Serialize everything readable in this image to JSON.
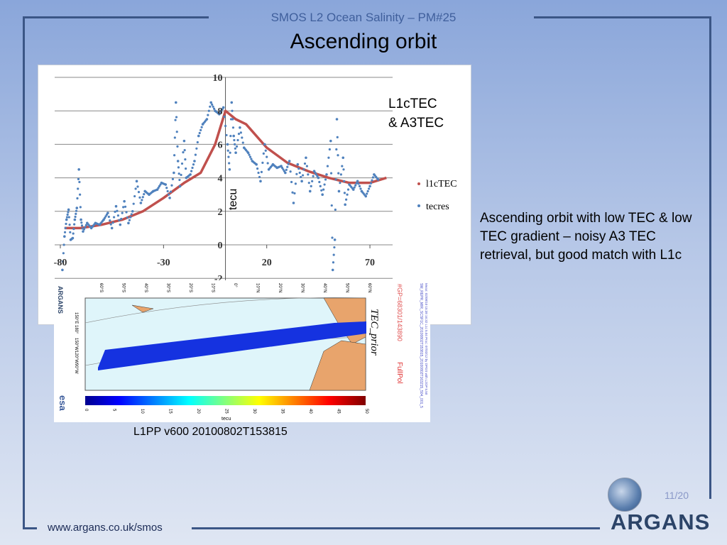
{
  "header": {
    "subtitle": "SMOS L2 Ocean Salinity – PM#25",
    "title": "Ascending orbit"
  },
  "annotation": {
    "line1": "L1cTEC",
    "line2": "& A3TEC"
  },
  "description": "Ascending orbit with low TEC & low TEC gradient – noisy A3 TEC retrieval, but good match with L1c",
  "map": {
    "caption": "L1PP v600 20100802T153815",
    "title": "TEC_prior",
    "gp_count": "#GP=68301/143890",
    "mode": "FullPol",
    "colorbar_label": "tecu",
    "colorbar_ticks": [
      "0",
      "5",
      "10",
      "15",
      "20",
      "25",
      "30",
      "35",
      "40",
      "45",
      "50"
    ],
    "lat_labels": [
      "60°S",
      "50°S",
      "40°S",
      "30°S",
      "20°S",
      "10°S",
      "0°",
      "10°N",
      "20°N",
      "30°N",
      "40°N",
      "50°N",
      "60°N"
    ],
    "lon_labels": [
      "150°E",
      "180°",
      "150°W",
      "120°W",
      "90°W"
    ],
    "file_info": "SM_REPR_MIR_SCSF1C_20100802T153815_20100802T163215_504_001_5",
    "meta_info": "Mean: 02/08/10 15:38 16:32 L1c 5.04 Proc: 07/02/12 by DPGS with L2OP 5.50",
    "logo_argans": "ARGANS",
    "logo_esa": "esa"
  },
  "footer": {
    "page": "11/20",
    "url": "www.argans.co.uk/smos",
    "logo": "ARGANS"
  },
  "chart_data": {
    "type": "scatter",
    "ylabel": "tecu",
    "xlabel": "",
    "xlim": [
      -80,
      80
    ],
    "ylim": [
      -2,
      10
    ],
    "x_ticks": [
      -80,
      -30,
      20,
      70
    ],
    "y_ticks": [
      -2,
      0,
      2,
      4,
      6,
      8,
      10
    ],
    "legend_position": "right",
    "series": [
      {
        "name": "l1cTEC",
        "color": "#c0504d",
        "kind": "line",
        "points": [
          [
            -78,
            1.0
          ],
          [
            -70,
            1.0
          ],
          [
            -60,
            1.2
          ],
          [
            -50,
            1.5
          ],
          [
            -40,
            2.0
          ],
          [
            -30,
            2.8
          ],
          [
            -20,
            3.7
          ],
          [
            -12,
            4.3
          ],
          [
            -5,
            6.0
          ],
          [
            0,
            8.0
          ],
          [
            5,
            7.5
          ],
          [
            10,
            7.2
          ],
          [
            20,
            5.8
          ],
          [
            30,
            4.9
          ],
          [
            40,
            4.4
          ],
          [
            50,
            4.0
          ],
          [
            60,
            3.7
          ],
          [
            70,
            3.7
          ],
          [
            78,
            4.0
          ]
        ]
      },
      {
        "name": "tecres",
        "color": "#4f81bd",
        "kind": "scatter",
        "points": [
          [
            -79,
            -1.5
          ],
          [
            -78,
            0.5
          ],
          [
            -77,
            1.5
          ],
          [
            -76,
            2.1
          ],
          [
            -75,
            0.3
          ],
          [
            -74,
            0.4
          ],
          [
            -73,
            1.5
          ],
          [
            -72,
            2.2
          ],
          [
            -71,
            4.5
          ],
          [
            -70,
            1.5
          ],
          [
            -69,
            0.8
          ],
          [
            -67,
            1.3
          ],
          [
            -65,
            1.0
          ],
          [
            -63,
            1.3
          ],
          [
            -61,
            1.2
          ],
          [
            -59,
            1.5
          ],
          [
            -57,
            1.9
          ],
          [
            -55,
            1.0
          ],
          [
            -53,
            2.3
          ],
          [
            -51,
            1.2
          ],
          [
            -49,
            2.6
          ],
          [
            -47,
            1.3
          ],
          [
            -45,
            2.0
          ],
          [
            -43,
            3.8
          ],
          [
            -41,
            2.5
          ],
          [
            -39,
            3.2
          ],
          [
            -37,
            3.0
          ],
          [
            -35,
            3.2
          ],
          [
            -33,
            3.3
          ],
          [
            -31,
            3.7
          ],
          [
            -29,
            3.6
          ],
          [
            -27,
            2.8
          ],
          [
            -25,
            4.3
          ],
          [
            -24,
            8.5
          ],
          [
            -23,
            5.0
          ],
          [
            -22,
            3.5
          ],
          [
            -20,
            6.2
          ],
          [
            -19,
            4.0
          ],
          [
            -17,
            4.2
          ],
          [
            -15,
            5.0
          ],
          [
            -13,
            6.5
          ],
          [
            -11,
            7.2
          ],
          [
            -9,
            7.5
          ],
          [
            -7,
            8.5
          ],
          [
            -5,
            8.0
          ],
          [
            -3,
            7.8
          ],
          [
            -1,
            8.2
          ],
          [
            1,
            6.0
          ],
          [
            2,
            4.5
          ],
          [
            3,
            8.5
          ],
          [
            4,
            6.5
          ],
          [
            5,
            5.5
          ],
          [
            7,
            7.0
          ],
          [
            9,
            5.8
          ],
          [
            11,
            5.5
          ],
          [
            13,
            5.0
          ],
          [
            15,
            4.8
          ],
          [
            17,
            3.8
          ],
          [
            19,
            6.0
          ],
          [
            21,
            4.5
          ],
          [
            23,
            4.8
          ],
          [
            25,
            4.6
          ],
          [
            27,
            4.7
          ],
          [
            29,
            4.3
          ],
          [
            31,
            5.0
          ],
          [
            33,
            2.5
          ],
          [
            35,
            4.8
          ],
          [
            37,
            3.8
          ],
          [
            39,
            5.2
          ],
          [
            41,
            3.2
          ],
          [
            43,
            4.4
          ],
          [
            45,
            4.0
          ],
          [
            47,
            3.0
          ],
          [
            49,
            4.2
          ],
          [
            51,
            6.2
          ],
          [
            52,
            -1.5
          ],
          [
            53,
            0.3
          ],
          [
            54,
            7.5
          ],
          [
            55,
            3.2
          ],
          [
            57,
            5.2
          ],
          [
            58,
            2.4
          ],
          [
            60,
            3.6
          ],
          [
            62,
            3.3
          ],
          [
            64,
            3.8
          ],
          [
            66,
            3.2
          ],
          [
            68,
            2.9
          ],
          [
            70,
            3.5
          ],
          [
            72,
            4.2
          ],
          [
            74,
            3.9
          ]
        ]
      }
    ]
  }
}
